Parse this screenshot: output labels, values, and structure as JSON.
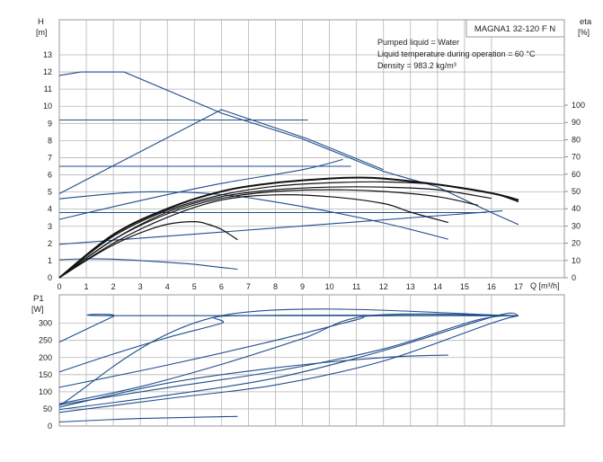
{
  "chart_data": [
    {
      "type": "line",
      "ylabel": "H",
      "ylabel_unit": "[m]",
      "y2label": "eta",
      "y2label_unit": "[%]",
      "xlabel": "Q [m³/h]",
      "xlim": [
        0,
        17
      ],
      "ylim": [
        0,
        14
      ],
      "y2lim": [
        0,
        110
      ],
      "grid": true,
      "x_ticks": [
        "0",
        "1",
        "2",
        "3",
        "4",
        "5",
        "6",
        "7",
        "8",
        "9",
        "10",
        "11",
        "12",
        "13",
        "14",
        "15",
        "16",
        "17"
      ],
      "y_ticks": [
        "0",
        "1",
        "2",
        "3",
        "4",
        "5",
        "6",
        "7",
        "8",
        "9",
        "10",
        "11",
        "12",
        "13"
      ],
      "y2_ticks": [
        "0",
        "10",
        "20",
        "30",
        "40",
        "50",
        "60",
        "70",
        "80",
        "90",
        "100"
      ],
      "legend_box": "MAGNA1 32-120 F N",
      "annotations": [
        "Pumped liquid = Water",
        "Liquid temperature during operation = 60 °C",
        "Density = 983.2 kg/m³"
      ],
      "series": [
        {
          "kind": "head",
          "x": [
            0,
            0.8,
            2.4,
            6,
            9,
            12,
            14,
            16,
            17
          ],
          "y": [
            11.8,
            12,
            12,
            9.6,
            8.1,
            6.2,
            5.3,
            3.8,
            3.1
          ]
        },
        {
          "kind": "head",
          "x": [
            0,
            6,
            9.2,
            12
          ],
          "y": [
            4.9,
            9.8,
            8.1,
            6.3
          ]
        },
        {
          "kind": "head",
          "x": [
            0,
            3,
            6,
            9,
            10.5
          ],
          "y": [
            3.4,
            4.5,
            5.5,
            6.3,
            6.9
          ]
        },
        {
          "kind": "head",
          "x": [
            0,
            16.4
          ],
          "y": [
            1.95,
            3.9
          ]
        },
        {
          "kind": "head",
          "x": [
            0,
            9.2
          ],
          "y": [
            9.2,
            9.2
          ]
        },
        {
          "kind": "head",
          "x": [
            0,
            10.8
          ],
          "y": [
            6.5,
            6.5
          ]
        },
        {
          "kind": "head",
          "x": [
            0,
            15.8
          ],
          "y": [
            3.8,
            3.8
          ]
        },
        {
          "kind": "head",
          "x": [
            0,
            3,
            6,
            9,
            12,
            14.4
          ],
          "y": [
            4.6,
            5,
            4.85,
            4.15,
            3.2,
            2.25
          ]
        },
        {
          "kind": "head",
          "x": [
            0,
            1,
            2,
            3,
            4,
            5,
            6,
            6.6
          ],
          "y": [
            1.05,
            1.1,
            1.08,
            1.0,
            0.9,
            0.78,
            0.6,
            0.5
          ]
        },
        {
          "kind": "eta",
          "x": [
            0,
            1,
            2,
            3,
            4,
            5,
            5.5,
            6,
            6.6
          ],
          "y": [
            0,
            10,
            19,
            26,
            31,
            32.5,
            31,
            28,
            22
          ]
        },
        {
          "kind": "eta",
          "x": [
            0,
            2,
            4,
            6,
            8,
            10,
            12,
            13,
            14.4
          ],
          "y": [
            0,
            20,
            35,
            45,
            48,
            47,
            43,
            38,
            32
          ]
        },
        {
          "kind": "eta",
          "x": [
            0,
            2,
            4,
            6,
            8,
            10,
            12,
            14,
            15.5
          ],
          "y": [
            0,
            22,
            37,
            46,
            50,
            51,
            50,
            47,
            42
          ]
        },
        {
          "kind": "eta",
          "x": [
            0,
            2,
            4,
            6,
            8,
            10,
            12,
            14,
            16
          ],
          "y": [
            0,
            22,
            38,
            47,
            51,
            52.5,
            52.5,
            51,
            46
          ]
        },
        {
          "kind": "eta",
          "x": [
            0,
            2,
            4,
            6,
            8,
            10,
            12,
            14,
            16,
            17
          ],
          "y": [
            0,
            24,
            39,
            48,
            53,
            55,
            55.5,
            54,
            49,
            44
          ]
        },
        {
          "kind": "eta",
          "x": [
            0,
            2,
            4,
            6,
            8,
            10,
            11,
            12,
            14,
            16,
            17
          ],
          "y": [
            0,
            25,
            40,
            50,
            55,
            57.5,
            58,
            57.5,
            54,
            49,
            45
          ]
        }
      ]
    },
    {
      "type": "line",
      "ylabel": "P1",
      "ylabel_unit": "[W]",
      "xlim": [
        0,
        17
      ],
      "ylim": [
        0,
        340
      ],
      "grid": true,
      "y_ticks": [
        "0",
        "50",
        "100",
        "150",
        "200",
        "250",
        "300"
      ],
      "series": [
        {
          "x": [
            0,
            2,
            2.1,
            17
          ],
          "y": [
            245,
            320,
            322,
            322
          ]
        },
        {
          "x": [
            0,
            6,
            17
          ],
          "y": [
            60,
            322,
            322
          ]
        },
        {
          "x": [
            0,
            2,
            4,
            6,
            6.6,
            17
          ],
          "y": [
            158,
            210,
            258,
            300,
            322,
            322
          ]
        },
        {
          "x": [
            0,
            4,
            8,
            11,
            11.8,
            17
          ],
          "y": [
            113,
            178,
            250,
            310,
            322,
            322
          ]
        },
        {
          "x": [
            0,
            3,
            6,
            9,
            11.5,
            17
          ],
          "y": [
            65,
            115,
            180,
            255,
            322,
            322
          ]
        },
        {
          "x": [
            0,
            4,
            8,
            12,
            14.4
          ],
          "y": [
            55,
            125,
            170,
            200,
            207
          ]
        },
        {
          "x": [
            0,
            4,
            8,
            12,
            15.5,
            17
          ],
          "y": [
            62,
            112,
            160,
            225,
            310,
            322
          ]
        },
        {
          "x": [
            0,
            4,
            8,
            12,
            16.2,
            17
          ],
          "y": [
            48,
            90,
            140,
            220,
            322,
            322
          ]
        },
        {
          "x": [
            0,
            4,
            8,
            12,
            16,
            17
          ],
          "y": [
            40,
            80,
            120,
            190,
            300,
            322
          ]
        },
        {
          "x": [
            0,
            3,
            6.6
          ],
          "y": [
            12,
            22,
            28
          ]
        }
      ]
    }
  ]
}
